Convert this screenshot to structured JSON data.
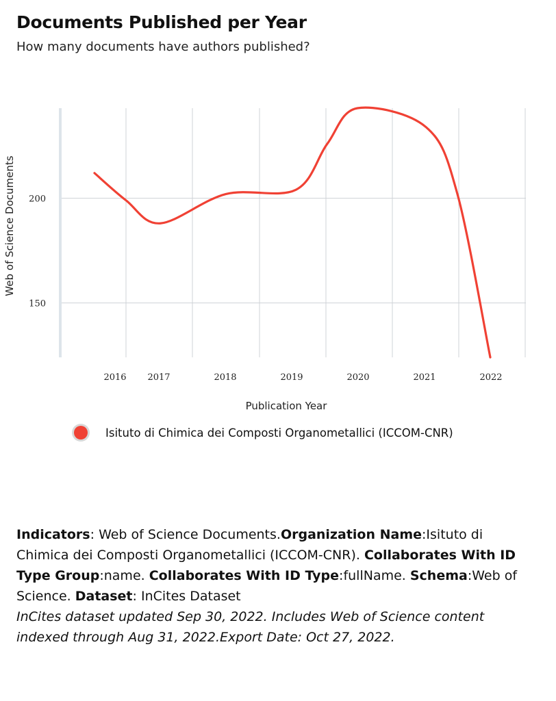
{
  "header": {
    "title": "Documents Published per Year",
    "subtitle": "How many documents have authors published?"
  },
  "chart_data": {
    "type": "line",
    "xlabel": "Publication Year",
    "ylabel": "Web of Science Documents",
    "x_ticks": [
      2016,
      2017,
      2018,
      2019,
      2020,
      2021,
      2022
    ],
    "y_ticks": [
      150,
      200
    ],
    "ylim": [
      124,
      243
    ],
    "grid": true,
    "legend_position": "bottom",
    "series": [
      {
        "name": "Isituto di Chimica dei Composti Organometallici (ICCOM-CNR)",
        "color": "#f04134",
        "points": [
          {
            "year": 2015.6,
            "value": 212
          },
          {
            "year": 2016,
            "value": 199
          },
          {
            "year": 2016.5,
            "value": 188
          },
          {
            "year": 2017.5,
            "value": 202
          },
          {
            "year": 2018.5,
            "value": 204
          },
          {
            "year": 2019,
            "value": 226
          },
          {
            "year": 2019.5,
            "value": 243
          },
          {
            "year": 2020.5,
            "value": 234
          },
          {
            "year": 2021,
            "value": 202
          },
          {
            "year": 2021.5,
            "value": 124
          }
        ]
      }
    ]
  },
  "footer": {
    "indicators_label": "Indicators",
    "indicators_value": "Web of Science Documents.",
    "org_label": "Organization Name",
    "org_value": "Isituto di Chimica dei Composti Organometallici (ICCOM-CNR). ",
    "collab_group_label": "Collaborates With ID Type Group",
    "collab_group_value": "name. ",
    "collab_type_label": "Collaborates With ID Type",
    "collab_type_value": "fullName. ",
    "schema_label": "Schema",
    "schema_value": "Web of Science. ",
    "dataset_label": "Dataset",
    "dataset_value": " InCites Dataset",
    "note": "InCites dataset updated Sep 30, 2022. Includes Web of Science content indexed through Aug 31, 2022.Export Date: Oct 27, 2022."
  }
}
